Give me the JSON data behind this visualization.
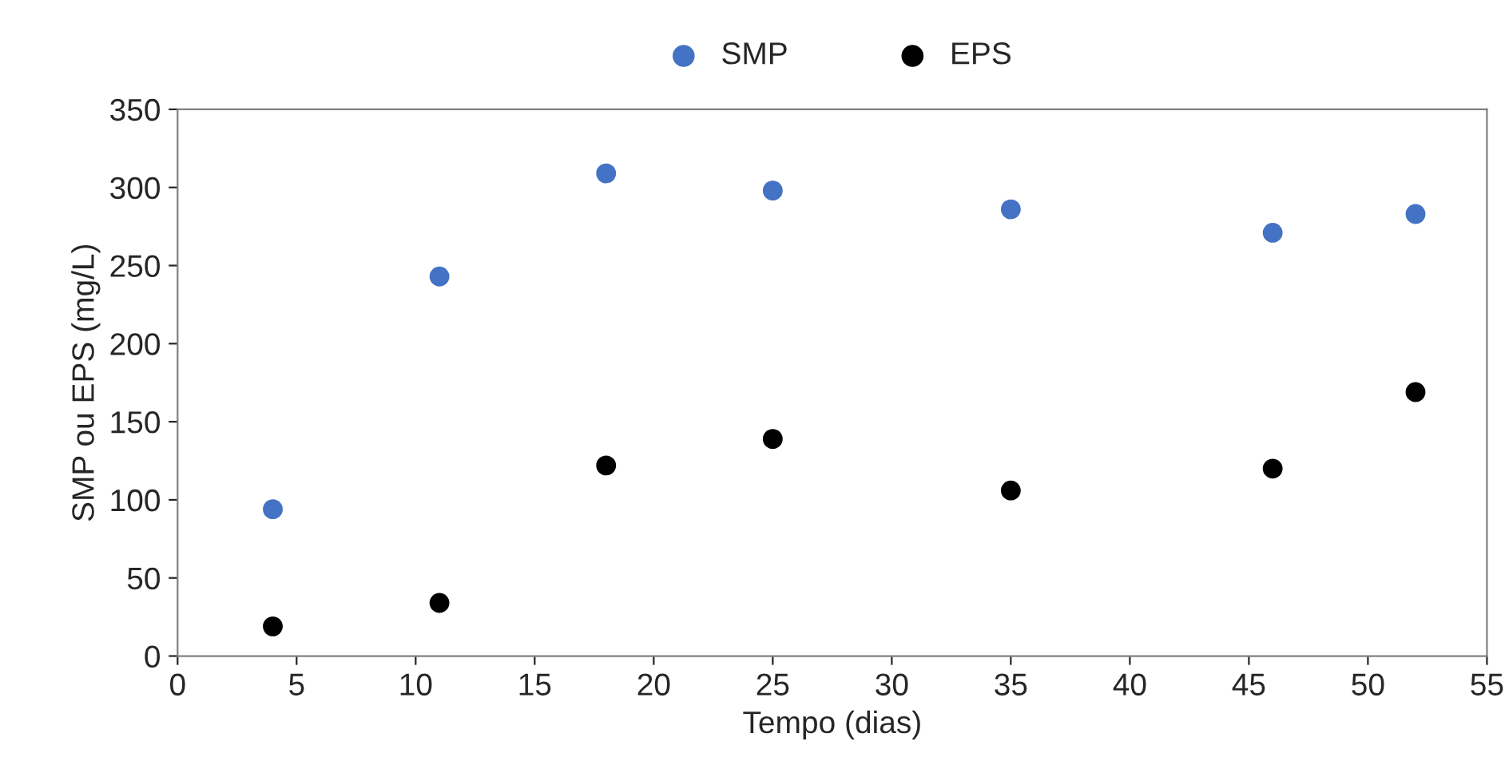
{
  "chart_data": {
    "type": "scatter",
    "xlabel": "Tempo (dias)",
    "ylabel": "SMP ou EPS (mg/L)",
    "x": [
      4,
      11,
      18,
      25,
      35,
      46,
      52
    ],
    "series": [
      {
        "name": "SMP",
        "color": "#4472c4",
        "values": [
          94,
          243,
          309,
          298,
          286,
          271,
          283
        ]
      },
      {
        "name": "EPS",
        "color": "#000000",
        "values": [
          19,
          34,
          122,
          139,
          106,
          120,
          169
        ]
      }
    ],
    "xlim": [
      0,
      55
    ],
    "xticks": [
      0,
      5,
      10,
      15,
      20,
      25,
      30,
      35,
      40,
      45,
      50,
      55
    ],
    "ylim": [
      0,
      350
    ],
    "yticks": [
      0,
      50,
      100,
      150,
      200,
      250,
      300,
      350
    ],
    "grid": false,
    "legend": "top",
    "marker": "circle"
  }
}
